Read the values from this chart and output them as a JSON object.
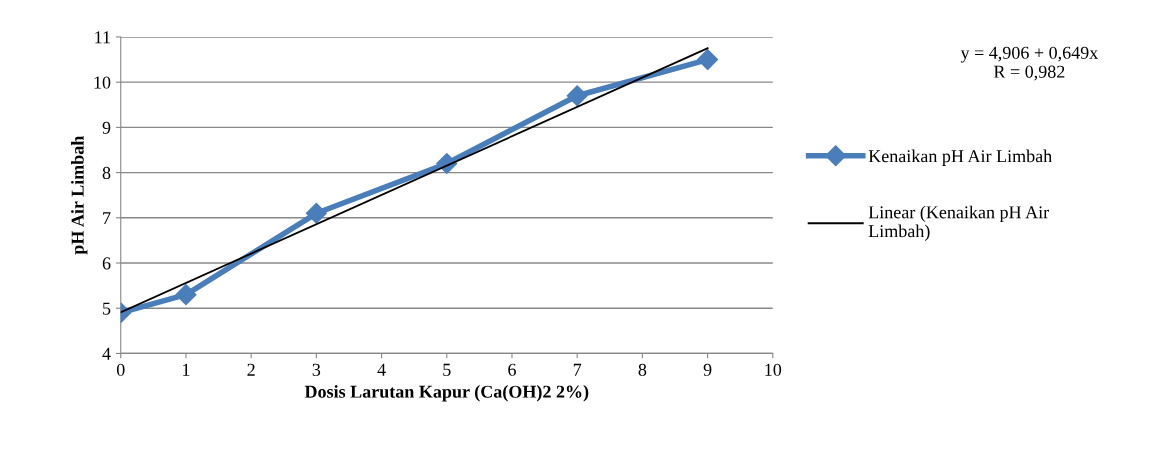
{
  "chart_data": {
    "type": "line",
    "xlabel": "Dosis Larutan Kapur (Ca(OH)2 2%)",
    "ylabel": "pH Air Limbah",
    "xlim": [
      0,
      10
    ],
    "xticks": [
      0,
      1,
      2,
      3,
      4,
      5,
      6,
      7,
      8,
      9,
      10
    ],
    "ylim": [
      4,
      11
    ],
    "yticks": [
      4,
      5,
      6,
      7,
      8,
      9,
      10,
      11
    ],
    "grid": "y",
    "legend": "right",
    "marker": "diamond",
    "line_style": "solid",
    "annotations": [
      "y = 4,906 + 0,649x\nR = 0,982"
    ],
    "series": [
      {
        "name": "Kenaikan pH Air Limbah",
        "color": "#4a7ebb",
        "x": [
          0,
          1,
          3,
          5,
          7,
          9
        ],
        "values": [
          4.9,
          5.3,
          7.1,
          8.2,
          9.7,
          10.5
        ]
      },
      {
        "name": "Linear (Kenaikan pH Air Limbah)",
        "type": "line",
        "marker": "none",
        "color": "#000000",
        "x": [
          0,
          9
        ],
        "values": [
          4.91,
          10.75
        ]
      }
    ]
  }
}
